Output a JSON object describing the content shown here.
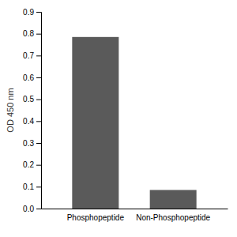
{
  "chart_data": {
    "type": "bar",
    "categories": [
      "Phosphopeptide",
      "Non-Phosphopeptide"
    ],
    "values": [
      0.785,
      0.085
    ],
    "color": "#5a5a5a",
    "ylabel": "OD 450 nm",
    "ylim": [
      0,
      0.9
    ],
    "yticks": [
      {
        "value": 0,
        "label": "0.0"
      },
      0.1,
      0.2,
      0.3,
      0.4,
      0.5,
      0.6,
      0.7,
      0.8,
      0.9
    ]
  }
}
